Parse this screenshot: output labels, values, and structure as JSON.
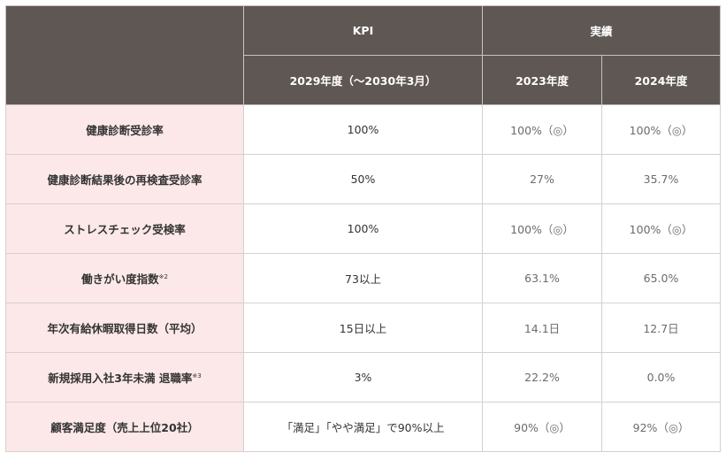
{
  "header": {
    "kpi": "KPI",
    "results": "実績",
    "target_year": "2029年度（～2030年3月）",
    "year_2023": "2023年度",
    "year_2024": "2024年度"
  },
  "rows": [
    {
      "label": "健康診断受診率",
      "note": "",
      "target": "100%",
      "y2023": "100%（◎）",
      "y2024": "100%（◎）"
    },
    {
      "label": "健康診断結果後の再検査受診率",
      "note": "",
      "target": "50%",
      "y2023": "27%",
      "y2024": "35.7%"
    },
    {
      "label": "ストレスチェック受検率",
      "note": "",
      "target": "100%",
      "y2023": "100%（◎）",
      "y2024": "100%（◎）"
    },
    {
      "label": "働きがい度指数",
      "note": "※2",
      "target": "73以上",
      "y2023": "63.1%",
      "y2024": "65.0%"
    },
    {
      "label": "年次有給休暇取得日数（平均）",
      "note": "",
      "target": "15日以上",
      "y2023": "14.1日",
      "y2024": "12.7日"
    },
    {
      "label": "新規採用入社3年未満 退職率",
      "note": "※3",
      "target": "3%",
      "y2023": "22.2%",
      "y2024": "0.0%"
    },
    {
      "label": "顧客満足度（売上上位20社）",
      "note": "",
      "target": "「満足」「やや満足」で90%以上",
      "y2023": "90%（◎）",
      "y2024": "92%（◎）"
    }
  ]
}
